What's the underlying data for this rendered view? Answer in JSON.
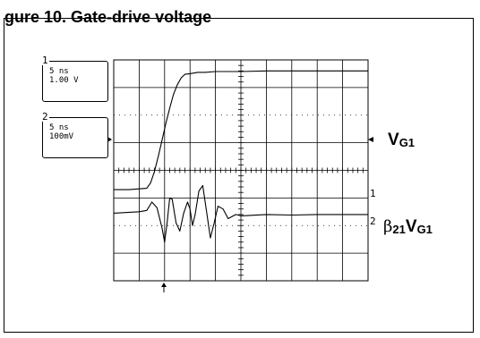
{
  "figure": {
    "title": "gure 10. Gate-drive voltage"
  },
  "channels": [
    {
      "number": "1",
      "timebase": "5 ns",
      "scale": "1.00 V"
    },
    {
      "number": "2",
      "timebase": "5 ns",
      "scale": "100mV"
    }
  ],
  "markers": {
    "ch1_ground": "1",
    "ch2_ground": "2"
  },
  "labels": {
    "vg1_main": "V",
    "vg1_sub": "G1",
    "beta": "β",
    "beta_sub": "21",
    "beta_v": "V",
    "beta_v_sub": "G1"
  },
  "chart_data": {
    "type": "line",
    "x_divisions": 10,
    "y_divisions": 8,
    "series": [
      {
        "x": [
          0,
          0.6,
          1.3,
          1.45,
          1.6,
          1.75,
          1.9,
          2.05,
          2.2,
          2.35,
          2.5,
          2.65,
          2.8,
          3.0,
          3.3,
          3.6,
          4.0,
          5.0,
          6.0,
          7.0,
          8.0,
          9.0,
          10.0
        ],
        "y": [
          -0.7,
          -0.7,
          -0.65,
          -0.45,
          -0.05,
          0.5,
          1.1,
          1.7,
          2.25,
          2.75,
          3.1,
          3.35,
          3.48,
          3.5,
          3.55,
          3.55,
          3.58,
          3.58,
          3.6,
          3.6,
          3.6,
          3.6,
          3.6
        ]
      },
      {
        "x": [
          0,
          1.0,
          1.3,
          1.5,
          1.7,
          1.9,
          2.0,
          2.1,
          2.2,
          2.3,
          2.45,
          2.6,
          2.75,
          2.9,
          3.0,
          3.1,
          3.2,
          3.35,
          3.5,
          3.65,
          3.8,
          3.95,
          4.1,
          4.3,
          4.5,
          4.8,
          5.0,
          6.0,
          7.0,
          8.0,
          9.0,
          10.0
        ],
        "y": [
          -1.55,
          -1.5,
          -1.45,
          -1.15,
          -1.35,
          -2.1,
          -2.6,
          -1.9,
          -1.0,
          -1.05,
          -1.9,
          -2.2,
          -1.55,
          -1.15,
          -1.4,
          -2.0,
          -1.6,
          -0.75,
          -0.55,
          -1.5,
          -2.45,
          -1.9,
          -1.3,
          -1.4,
          -1.75,
          -1.6,
          -1.65,
          -1.6,
          -1.62,
          -1.6,
          -1.6,
          -1.6
        ]
      }
    ]
  }
}
